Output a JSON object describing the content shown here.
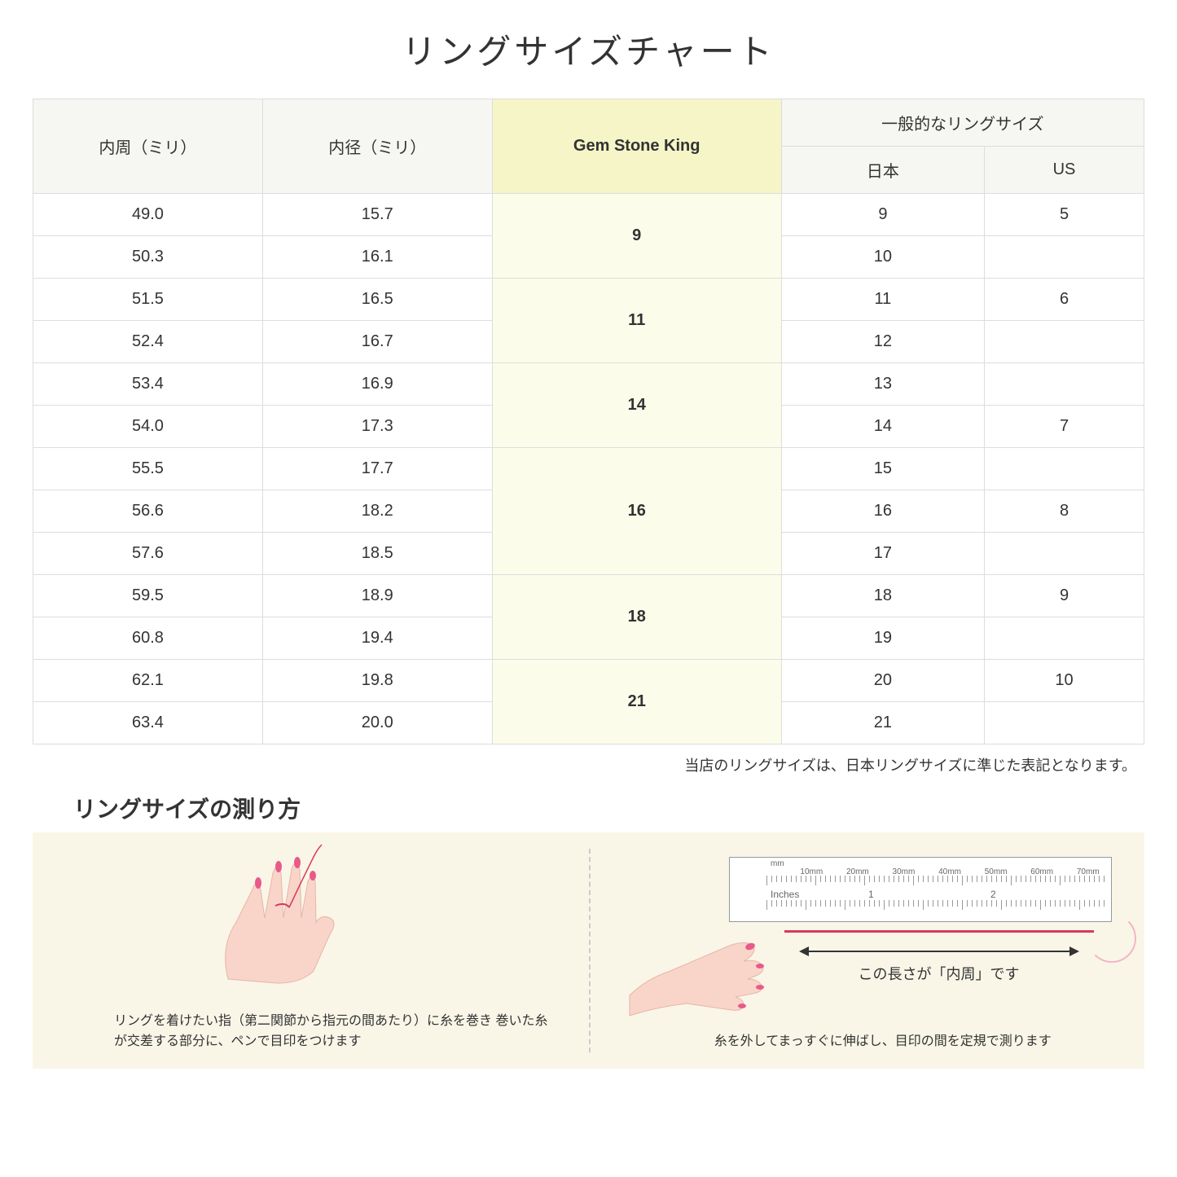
{
  "title": "リングサイズチャート",
  "headers": {
    "circumference": "内周（ミリ）",
    "diameter": "内径（ミリ）",
    "gsk": "Gem Stone King",
    "general": "一般的なリングサイズ",
    "japan": "日本",
    "us": "US"
  },
  "groups": [
    {
      "gsk": "9",
      "rows": [
        {
          "circ": "49.0",
          "diam": "15.7",
          "jp": "9",
          "us": "5"
        },
        {
          "circ": "50.3",
          "diam": "16.1",
          "jp": "10",
          "us": ""
        }
      ]
    },
    {
      "gsk": "11",
      "rows": [
        {
          "circ": "51.5",
          "diam": "16.5",
          "jp": "11",
          "us": "6"
        },
        {
          "circ": "52.4",
          "diam": "16.7",
          "jp": "12",
          "us": ""
        }
      ]
    },
    {
      "gsk": "14",
      "rows": [
        {
          "circ": "53.4",
          "diam": "16.9",
          "jp": "13",
          "us": ""
        },
        {
          "circ": "54.0",
          "diam": "17.3",
          "jp": "14",
          "us": "7"
        }
      ]
    },
    {
      "gsk": "16",
      "rows": [
        {
          "circ": "55.5",
          "diam": "17.7",
          "jp": "15",
          "us": ""
        },
        {
          "circ": "56.6",
          "diam": "18.2",
          "jp": "16",
          "us": "8"
        },
        {
          "circ": "57.6",
          "diam": "18.5",
          "jp": "17",
          "us": ""
        }
      ]
    },
    {
      "gsk": "18",
      "rows": [
        {
          "circ": "59.5",
          "diam": "18.9",
          "jp": "18",
          "us": "9"
        },
        {
          "circ": "60.8",
          "diam": "19.4",
          "jp": "19",
          "us": ""
        }
      ]
    },
    {
      "gsk": "21",
      "rows": [
        {
          "circ": "62.1",
          "diam": "19.8",
          "jp": "20",
          "us": "10"
        },
        {
          "circ": "63.4",
          "diam": "20.0",
          "jp": "21",
          "us": ""
        }
      ]
    }
  ],
  "note": "当店のリングサイズは、日本リングサイズに準じた表記となります。",
  "howto": {
    "title": "リングサイズの測り方",
    "left_caption": "リングを着けたい指（第二関節から指元の間あたり）に糸を巻き\n巻いた糸が交差する部分に、ペンで目印をつけます",
    "right_caption": "糸を外してまっすぐに伸ばし、目印の間を定規で測ります",
    "arrow_label": "この長さが「内周」です",
    "ruler_mm": "mm",
    "ruler_inches": "Inches",
    "ruler_mm_labels": [
      "10mm",
      "20mm",
      "30mm",
      "40mm",
      "50mm",
      "60mm",
      "70mm"
    ]
  },
  "colors": {
    "header_bg": "#f6f6f2",
    "gsk_header_bg": "#f5f5c8",
    "gsk_cell_bg": "#fcfceb",
    "border": "#dddddd",
    "howto_bg": "#f9f6e8",
    "skin": "#f8d5c8",
    "nail": "#e85a8a",
    "thread": "#d63a5a"
  }
}
